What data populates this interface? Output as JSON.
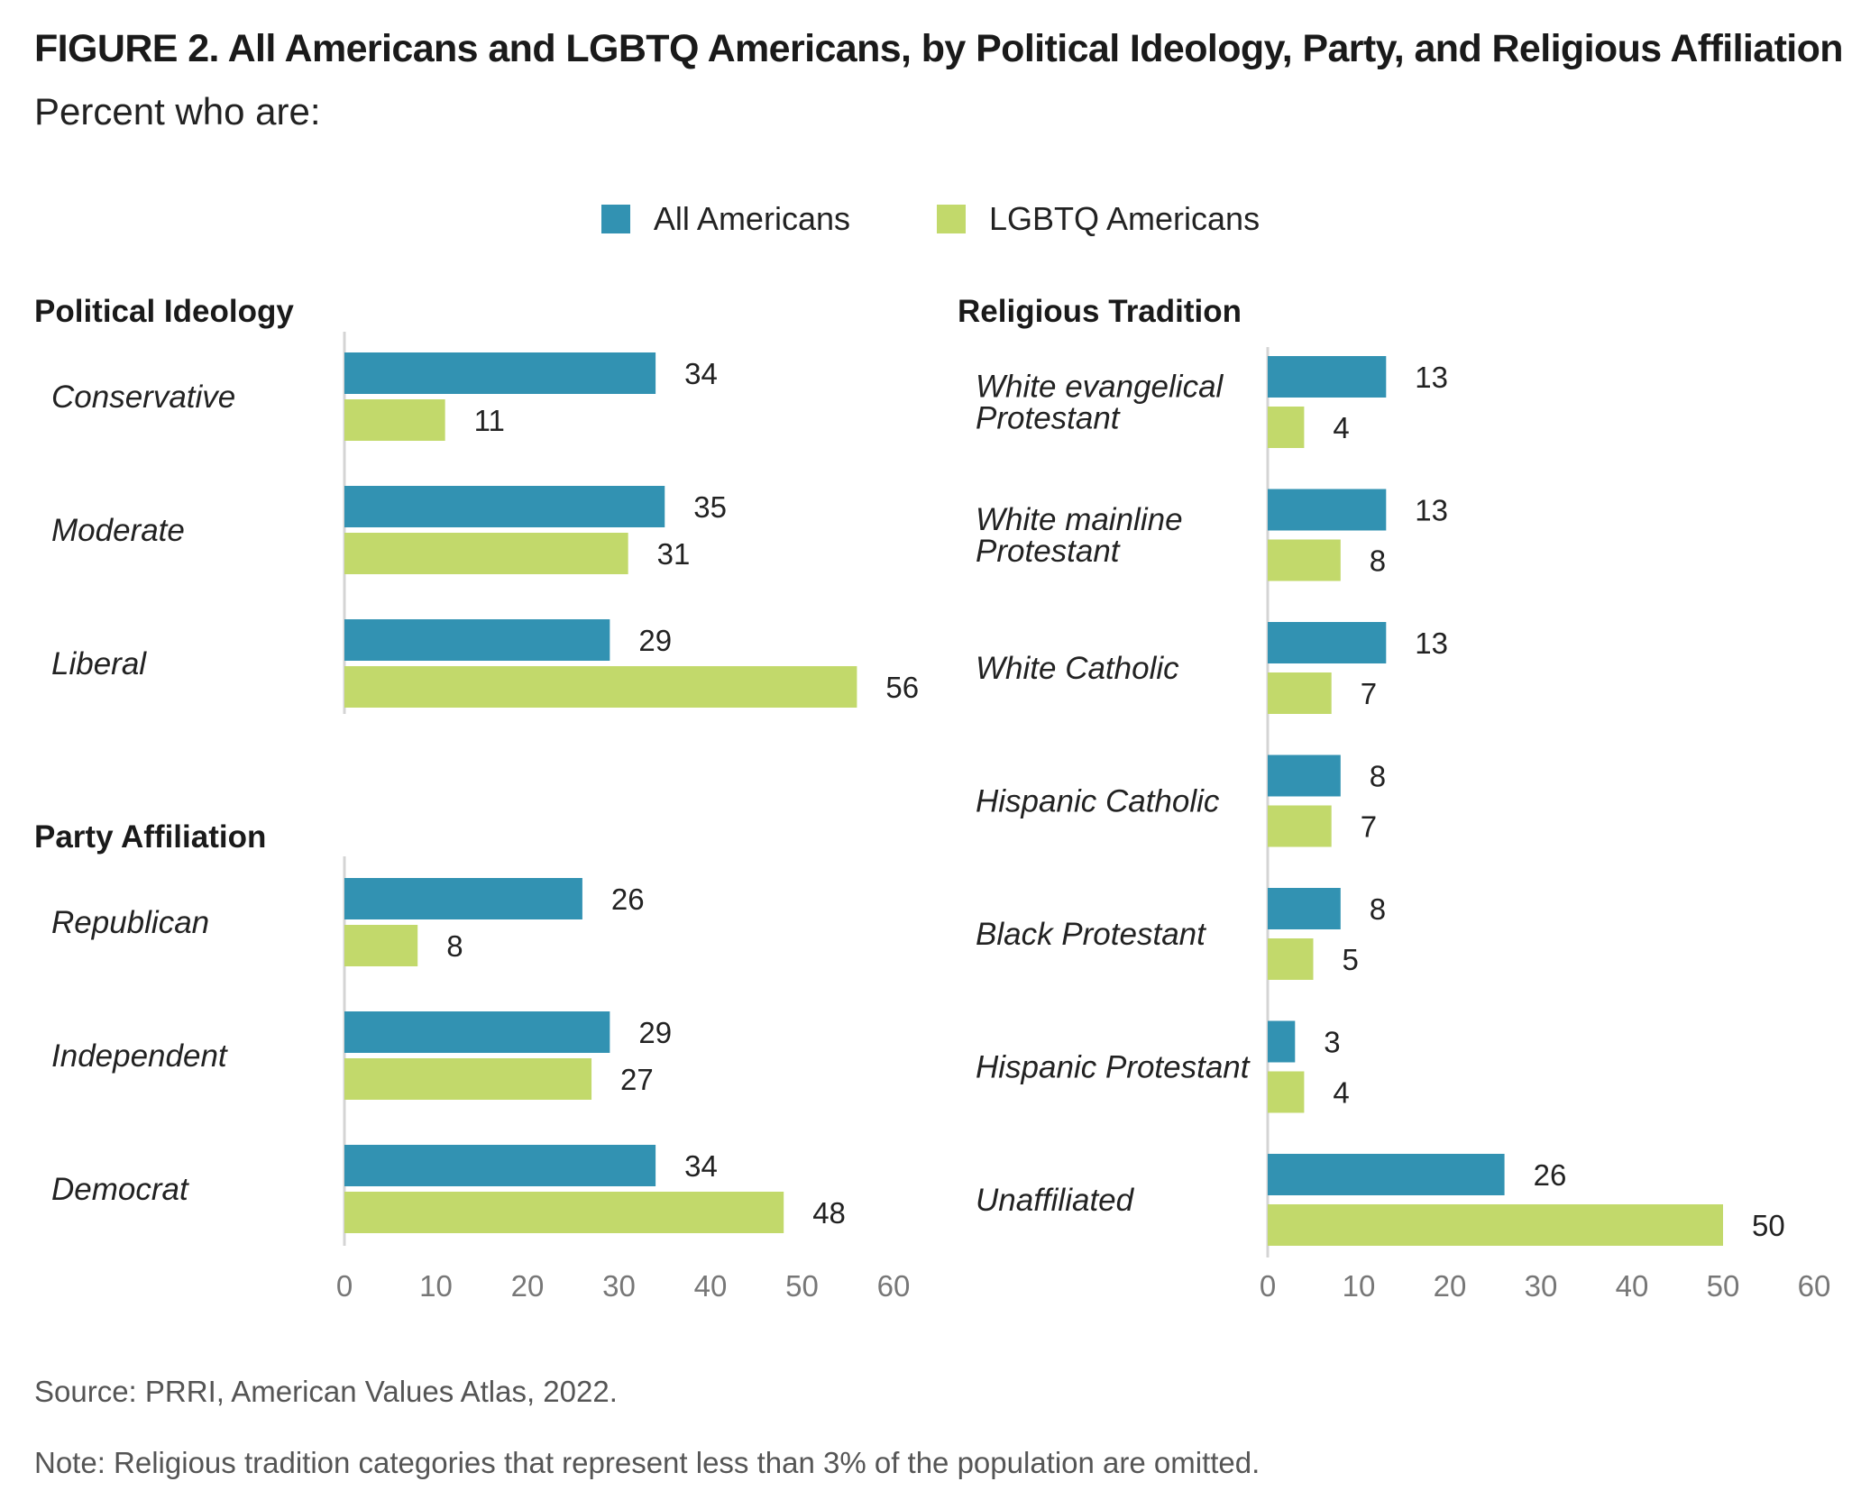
{
  "title": "FIGURE 2.  All Americans and LGBTQ Americans, by Political Ideology, Party, and Religious Affiliation",
  "subtitle": "Percent who are:",
  "legend": [
    {
      "name": "All Americans",
      "color": "#3292b2"
    },
    {
      "name": "LGBTQ Americans",
      "color": "#c2d96b"
    }
  ],
  "chart_data": [
    {
      "type": "bar",
      "orientation": "horizontal",
      "title": "Political Ideology",
      "categories": [
        "Conservative",
        "Moderate",
        "Liberal"
      ],
      "series": [
        {
          "name": "All Americans",
          "values": [
            34,
            35,
            29
          ]
        },
        {
          "name": "LGBTQ Americans",
          "values": [
            11,
            31,
            56
          ]
        }
      ],
      "xlim": [
        0,
        60
      ]
    },
    {
      "type": "bar",
      "orientation": "horizontal",
      "title": "Party Affiliation",
      "categories": [
        "Republican",
        "Independent",
        "Democrat"
      ],
      "series": [
        {
          "name": "All Americans",
          "values": [
            26,
            29,
            34
          ]
        },
        {
          "name": "LGBTQ Americans",
          "values": [
            8,
            27,
            48
          ]
        }
      ],
      "xlim": [
        0,
        60
      ],
      "xticks": [
        0,
        10,
        20,
        30,
        40,
        50,
        60
      ]
    },
    {
      "type": "bar",
      "orientation": "horizontal",
      "title": "Religious Tradition",
      "categories": [
        "White evangelical Protestant",
        "White mainline Protestant",
        "White Catholic",
        "Hispanic Catholic",
        "Black Protestant",
        "Hispanic Protestant",
        "Unaffiliated"
      ],
      "series": [
        {
          "name": "All Americans",
          "values": [
            13,
            13,
            13,
            8,
            8,
            3,
            26
          ]
        },
        {
          "name": "LGBTQ Americans",
          "values": [
            4,
            8,
            7,
            7,
            5,
            4,
            50
          ]
        }
      ],
      "xlim": [
        0,
        60
      ],
      "xticks": [
        0,
        10,
        20,
        30,
        40,
        50,
        60
      ]
    }
  ],
  "source": "Source: PRRI, American Values Atlas, 2022.",
  "note": "Note: Religious tradition categories that represent less than 3% of the population are omitted."
}
